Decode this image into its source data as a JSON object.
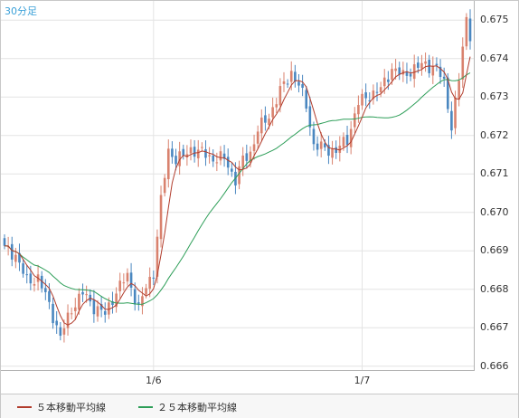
{
  "timeframe": "30分足",
  "legend": {
    "ma5_label": "５本移動平均線",
    "ma25_label": "２５本移動平均線"
  },
  "colors": {
    "up": "#d9826e",
    "down": "#4a87c0",
    "ma5": "#b13c2c",
    "ma25": "#2d9e58",
    "grid": "#e4e4e4"
  },
  "chart_data": {
    "type": "candlestick",
    "ylim": [
      0.6659,
      0.6755
    ],
    "yticks": [
      "0.675",
      "0.674",
      "0.673",
      "0.672",
      "0.671",
      "0.670",
      "0.669",
      "0.668",
      "0.667",
      "0.666"
    ],
    "ytick_values": [
      0.675,
      0.674,
      0.673,
      0.672,
      0.671,
      0.67,
      0.669,
      0.668,
      0.667,
      0.666
    ],
    "xticks": [
      {
        "label": "1/6",
        "index": 40
      },
      {
        "label": "1/7",
        "index": 96
      }
    ],
    "n_candles": 126,
    "anchors": [
      [
        0,
        0.66905
      ],
      [
        3,
        0.6689
      ],
      [
        6,
        0.6682
      ],
      [
        9,
        0.6683
      ],
      [
        12,
        0.6676
      ],
      [
        15,
        0.66675
      ],
      [
        18,
        0.6675
      ],
      [
        21,
        0.6679
      ],
      [
        24,
        0.66755
      ],
      [
        27,
        0.66735
      ],
      [
        30,
        0.66795
      ],
      [
        33,
        0.66835
      ],
      [
        36,
        0.6675
      ],
      [
        38,
        0.66805
      ],
      [
        40,
        0.66845
      ],
      [
        42,
        0.6703
      ],
      [
        44,
        0.6716
      ],
      [
        46,
        0.6714
      ],
      [
        48,
        0.67145
      ],
      [
        50,
        0.67165
      ],
      [
        53,
        0.67155
      ],
      [
        56,
        0.6714
      ],
      [
        59,
        0.6714
      ],
      [
        62,
        0.67085
      ],
      [
        64,
        0.67135
      ],
      [
        66,
        0.67155
      ],
      [
        68,
        0.67215
      ],
      [
        71,
        0.6725
      ],
      [
        74,
        0.67315
      ],
      [
        77,
        0.67365
      ],
      [
        79,
        0.6733
      ],
      [
        81,
        0.6728
      ],
      [
        83,
        0.67175
      ],
      [
        86,
        0.67165
      ],
      [
        89,
        0.6716
      ],
      [
        92,
        0.6719
      ],
      [
        95,
        0.67285
      ],
      [
        98,
        0.67305
      ],
      [
        101,
        0.6732
      ],
      [
        104,
        0.67375
      ],
      [
        107,
        0.67355
      ],
      [
        110,
        0.67375
      ],
      [
        113,
        0.67385
      ],
      [
        116,
        0.67375
      ],
      [
        118,
        0.67335
      ],
      [
        120,
        0.67225
      ],
      [
        122,
        0.67345
      ],
      [
        124,
        0.67505
      ],
      [
        125,
        0.67465
      ]
    ]
  }
}
